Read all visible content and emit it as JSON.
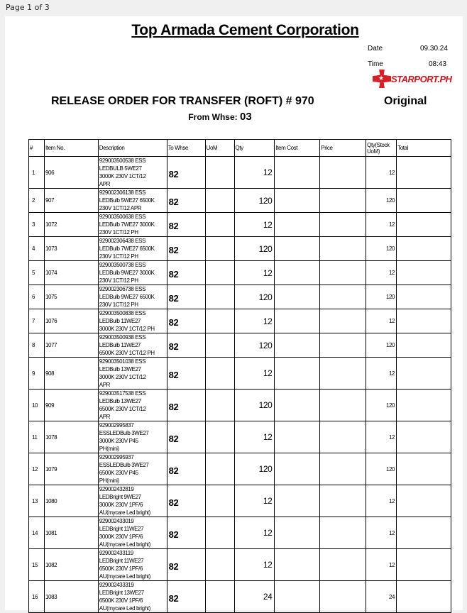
{
  "page_info": "Page 1 of 3",
  "company": "Top Armada Cement Corporation",
  "date_label": "Date",
  "date": "09.30.24",
  "time_label": "Time",
  "time": "08:43",
  "logo_text": "STARPORT.PH",
  "doc_title": "RELEASE ORDER FOR TRANSFER (ROFT) # 970",
  "copy_label": "Original",
  "from_whse_label": "From Whse:",
  "from_whse": "03",
  "columns": [
    "#",
    "Item No.",
    "Description",
    "To Whse",
    "UoM",
    "Qty",
    "Item Cost",
    "Price",
    "Qty(Stock UoM)",
    "Total"
  ],
  "rows": [
    {
      "n": "1",
      "item": "906",
      "desc": "929003500538 ESS\nLEDBULB 5WE27\n3000K 230V 1CT/12\nAPR",
      "to": "82",
      "uom": "",
      "qty": "12",
      "cost": "",
      "price": "",
      "qs": "12",
      "total": ""
    },
    {
      "n": "2",
      "item": "907",
      "desc": "929002306138 ESS\nLEDBulb 5WE27 6500K\n230V 1CT/12 APR",
      "to": "82",
      "uom": "",
      "qty": "120",
      "cost": "",
      "price": "",
      "qs": "120",
      "total": ""
    },
    {
      "n": "3",
      "item": "1072",
      "desc": "929003500638 ESS\nLEDBulb 7WE27 3000K\n230V 1CT/12 PH",
      "to": "82",
      "uom": "",
      "qty": "12",
      "cost": "",
      "price": "",
      "qs": "12",
      "total": ""
    },
    {
      "n": "4",
      "item": "1073",
      "desc": "929002306438 ESS\nLEDBulb 7WE27 6500K\n230V 1CT/12 PH",
      "to": "82",
      "uom": "",
      "qty": "120",
      "cost": "",
      "price": "",
      "qs": "120",
      "total": ""
    },
    {
      "n": "5",
      "item": "1074",
      "desc": "929003500738 ESS\nLEDBulb 9WE27 3000K\n230V 1CT/12 PH",
      "to": "82",
      "uom": "",
      "qty": "12",
      "cost": "",
      "price": "",
      "qs": "12",
      "total": ""
    },
    {
      "n": "6",
      "item": "1075",
      "desc": "929002306738 ESS\nLEDBulb 9WE27 6500K\n230V 1CT/12 PH",
      "to": "82",
      "uom": "",
      "qty": "120",
      "cost": "",
      "price": "",
      "qs": "120",
      "total": ""
    },
    {
      "n": "7",
      "item": "1076",
      "desc": "929003500838 ESS\nLEDBulb 11WE27\n3000K 230V 1CT/12 PH",
      "to": "82",
      "uom": "",
      "qty": "12",
      "cost": "",
      "price": "",
      "qs": "12",
      "total": ""
    },
    {
      "n": "8",
      "item": "1077",
      "desc": "929003500938 ESS\nLEDBulb 11WE27\n6500K 230V 1CT/12 PH",
      "to": "82",
      "uom": "",
      "qty": "120",
      "cost": "",
      "price": "",
      "qs": "120",
      "total": ""
    },
    {
      "n": "9",
      "item": "908",
      "desc": "929003501038 ESS\nLEDBulb 13WE27\n3000K 230V 1CT/12\nAPR",
      "to": "82",
      "uom": "",
      "qty": "12",
      "cost": "",
      "price": "",
      "qs": "12",
      "total": ""
    },
    {
      "n": "10",
      "item": "909",
      "desc": "929003517538 ESS\nLEDBulb 13WE27\n6500K 230V 1CT/12\nAPR",
      "to": "82",
      "uom": "",
      "qty": "120",
      "cost": "",
      "price": "",
      "qs": "120",
      "total": ""
    },
    {
      "n": "11",
      "item": "1078",
      "desc": "929002995837\nESSLEDBulb 3WE27\n3000K 230V P45\nPH(mini)",
      "to": "82",
      "uom": "",
      "qty": "12",
      "cost": "",
      "price": "",
      "qs": "12",
      "total": ""
    },
    {
      "n": "12",
      "item": "1079",
      "desc": "929002995937\nESSLEDBulb 3WE27\n6500K 230V P45\nPH(mini)",
      "to": "82",
      "uom": "",
      "qty": "120",
      "cost": "",
      "price": "",
      "qs": "120",
      "total": ""
    },
    {
      "n": "13",
      "item": "1080",
      "desc": "929002432819\nLEDBright 9WE27\n3000K 230V 1PF/6\nAU(mycare Led bright)",
      "to": "82",
      "uom": "",
      "qty": "12",
      "cost": "",
      "price": "",
      "qs": "12",
      "total": ""
    },
    {
      "n": "14",
      "item": "1081",
      "desc": "929002433019\nLEDBright 11WE27\n3000K 230V 1PF/6\nAU(mycare Led bright)",
      "to": "82",
      "uom": "",
      "qty": "12",
      "cost": "",
      "price": "",
      "qs": "12",
      "total": ""
    },
    {
      "n": "15",
      "item": "1082",
      "desc": "929002433119\nLEDBright 11WE27\n6500K 230V 1PF/6\nAU(mycare Led bright)",
      "to": "82",
      "uom": "",
      "qty": "12",
      "cost": "",
      "price": "",
      "qs": "12",
      "total": ""
    },
    {
      "n": "16",
      "item": "1083",
      "desc": "929002433319\nLEDBright 13WE27\n6500K 230V 1PF/6\nAU(mycare Led bright)",
      "to": "82",
      "uom": "",
      "qty": "24",
      "cost": "",
      "price": "",
      "qs": "24",
      "total": ""
    }
  ]
}
